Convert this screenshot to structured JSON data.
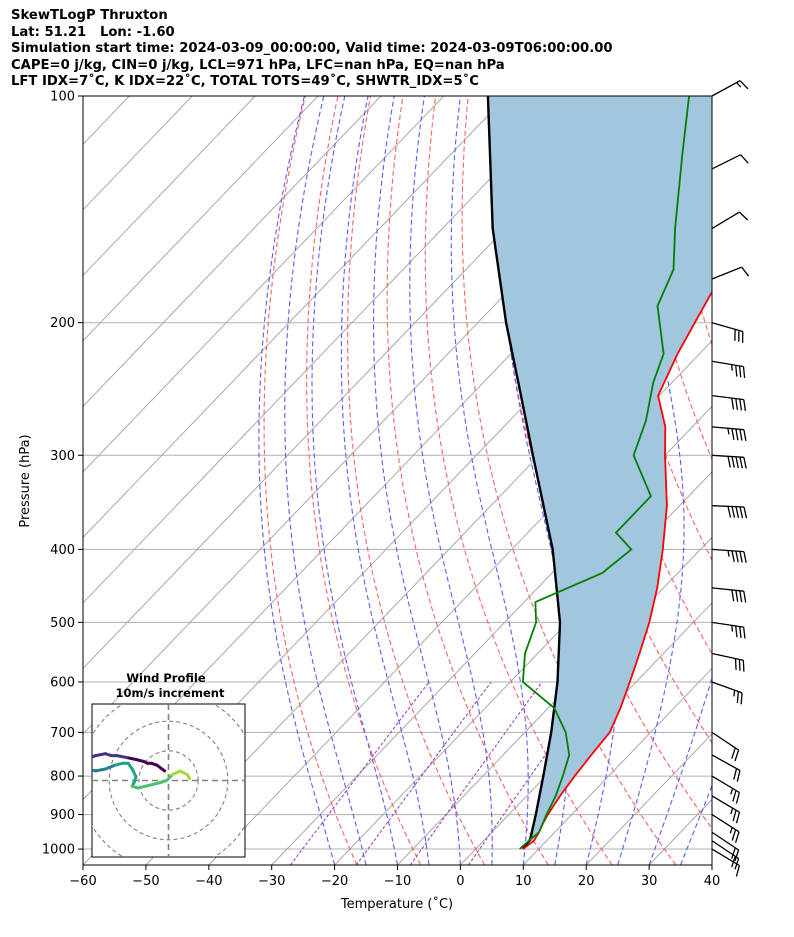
{
  "header": {
    "line1": "SkewTLogP Thruxton",
    "line2": "Lat: 51.21   Lon: -1.60",
    "line3": "Simulation start time: 2024-03-09_00:00:00, Valid time: 2024-03-09T06:00:00.00",
    "line4": "CAPE=0 j/kg, CIN=0 j/kg, LCL=971 hPa, LFC=nan hPa, EQ=nan hPa",
    "line5": "LFT IDX=7˚C, K IDX=22˚C, TOTAL TOTS=49˚C, SHWTR_IDX=5˚C"
  },
  "chart_data": {
    "type": "line",
    "subtype": "skew-T log-P diagram",
    "xlabel": "Temperature (˚C)",
    "ylabel": "Pressure (hPa)",
    "xlim": [
      -60,
      40
    ],
    "ylim": [
      1050,
      100
    ],
    "y_scale": "log",
    "x_ticks": [
      "−60",
      "−50",
      "−40",
      "−30",
      "−20",
      "−10",
      "0",
      "10",
      "20",
      "30",
      "40"
    ],
    "y_ticks": [
      "100",
      "200",
      "300",
      "400",
      "500",
      "600",
      "700",
      "800",
      "900",
      "1000"
    ],
    "y_tick_values": [
      100,
      200,
      300,
      400,
      500,
      600,
      700,
      800,
      900,
      1000
    ],
    "temperature": {
      "color": "#ff0000",
      "points": [
        [
          1000,
          7.5
        ],
        [
          975,
          8
        ],
        [
          950,
          7.5
        ],
        [
          925,
          6.8
        ],
        [
          900,
          6.2
        ],
        [
          850,
          5.3
        ],
        [
          800,
          4.6
        ],
        [
          750,
          4
        ],
        [
          700,
          3.5
        ],
        [
          650,
          1.5
        ],
        [
          600,
          -1
        ],
        [
          550,
          -3.8
        ],
        [
          500,
          -7
        ],
        [
          450,
          -11
        ],
        [
          400,
          -16
        ],
        [
          350,
          -22
        ],
        [
          300,
          -30
        ],
        [
          275,
          -34.3
        ],
        [
          250,
          -40.2
        ],
        [
          220,
          -43.5
        ],
        [
          200,
          -45.5
        ],
        [
          180,
          -47.7
        ],
        [
          160,
          -50
        ],
        [
          150,
          -50.9
        ],
        [
          140,
          -52.2
        ],
        [
          120,
          -53.3
        ],
        [
          100,
          -55
        ]
      ]
    },
    "dewpoint": {
      "color": "#008000",
      "points": [
        [
          1000,
          7
        ],
        [
          970,
          7.2
        ],
        [
          950,
          7.5
        ],
        [
          900,
          6
        ],
        [
          850,
          4.6
        ],
        [
          800,
          2.7
        ],
        [
          750,
          0.5
        ],
        [
          700,
          -3.5
        ],
        [
          650,
          -9
        ],
        [
          600,
          -18
        ],
        [
          550,
          -22
        ],
        [
          500,
          -25
        ],
        [
          470,
          -28.2
        ],
        [
          430,
          -22
        ],
        [
          400,
          -21
        ],
        [
          380,
          -26
        ],
        [
          340,
          -26
        ],
        [
          300,
          -35
        ],
        [
          270,
          -38.3
        ],
        [
          240,
          -43
        ],
        [
          220,
          -45.7
        ],
        [
          190,
          -54
        ],
        [
          170,
          -57
        ],
        [
          150,
          -63
        ],
        [
          120,
          -73
        ],
        [
          100,
          -81
        ]
      ]
    },
    "parcel_profile": {
      "color": "#000000",
      "points": [
        [
          1000,
          7.5
        ],
        [
          971,
          7.2
        ],
        [
          900,
          4.3
        ],
        [
          800,
          -0.4
        ],
        [
          700,
          -5.8
        ],
        [
          600,
          -12.5
        ],
        [
          500,
          -21.2
        ],
        [
          400,
          -33.5
        ],
        [
          300,
          -51
        ],
        [
          250,
          -62
        ],
        [
          200,
          -75.5
        ],
        [
          150,
          -92
        ],
        [
          100,
          -113
        ]
      ]
    },
    "wind_barbs": [
      {
        "p": 1000,
        "u": -10,
        "v": 6
      },
      {
        "p": 975,
        "u": -15,
        "v": 10
      },
      {
        "p": 950,
        "u": -18,
        "v": 12
      },
      {
        "p": 900,
        "u": -22,
        "v": 14
      },
      {
        "p": 850,
        "u": -22,
        "v": 13
      },
      {
        "p": 800,
        "u": -20,
        "v": 12
      },
      {
        "p": 750,
        "u": -18,
        "v": 10
      },
      {
        "p": 700,
        "u": -15,
        "v": 10
      },
      {
        "p": 600,
        "u": -22,
        "v": 8
      },
      {
        "p": 550,
        "u": -28,
        "v": 6
      },
      {
        "p": 500,
        "u": -33,
        "v": 5
      },
      {
        "p": 450,
        "u": -38,
        "v": 4
      },
      {
        "p": 400,
        "u": -44,
        "v": 3
      },
      {
        "p": 350,
        "u": -48,
        "v": 2
      },
      {
        "p": 300,
        "u": -48,
        "v": 3
      },
      {
        "p": 275,
        "u": -45,
        "v": 4
      },
      {
        "p": 250,
        "u": -40,
        "v": 5
      },
      {
        "p": 225,
        "u": -35,
        "v": 6
      },
      {
        "p": 200,
        "u": -28,
        "v": 8
      },
      {
        "p": 175,
        "u": -10,
        "v": -4
      },
      {
        "p": 150,
        "u": -10,
        "v": -6
      },
      {
        "p": 125,
        "u": -10,
        "v": -5
      },
      {
        "p": 100,
        "u": -11,
        "v": -6
      }
    ],
    "hodograph": {
      "title_line1": "Wind Profile",
      "title_line2": "10m/s increment",
      "rings_ms": [
        10,
        20,
        30,
        40
      ],
      "max_ms": 40,
      "points": [
        [
          -2,
          5
        ],
        [
          -6,
          8
        ],
        [
          -9,
          9
        ],
        [
          -11,
          9
        ],
        [
          -13,
          10
        ],
        [
          -17,
          11
        ],
        [
          -22,
          12
        ],
        [
          -27,
          13
        ],
        [
          -30,
          13
        ],
        [
          -33,
          14
        ],
        [
          -38,
          13
        ],
        [
          -41,
          12
        ],
        [
          -45,
          10
        ],
        [
          -49,
          8
        ],
        [
          -52,
          6
        ],
        [
          -55,
          3
        ],
        [
          -57,
          1
        ],
        [
          -58,
          -1
        ],
        [
          -53,
          8
        ],
        [
          -48,
          8
        ],
        [
          -43,
          6
        ],
        [
          -38,
          5
        ],
        [
          -33,
          6
        ],
        [
          -28,
          8
        ],
        [
          -24,
          9
        ],
        [
          -21,
          9
        ],
        [
          -19,
          6
        ],
        [
          -17,
          2
        ],
        [
          -18,
          -1
        ],
        [
          -19,
          -3
        ],
        [
          -16,
          -4
        ],
        [
          -12,
          -3
        ],
        [
          -8,
          -2
        ],
        [
          -4,
          -1
        ],
        [
          -1,
          0
        ],
        [
          2,
          3
        ],
        [
          4,
          4
        ],
        [
          6,
          5
        ],
        [
          8,
          4
        ],
        [
          10,
          3
        ],
        [
          11,
          1
        ]
      ]
    }
  }
}
